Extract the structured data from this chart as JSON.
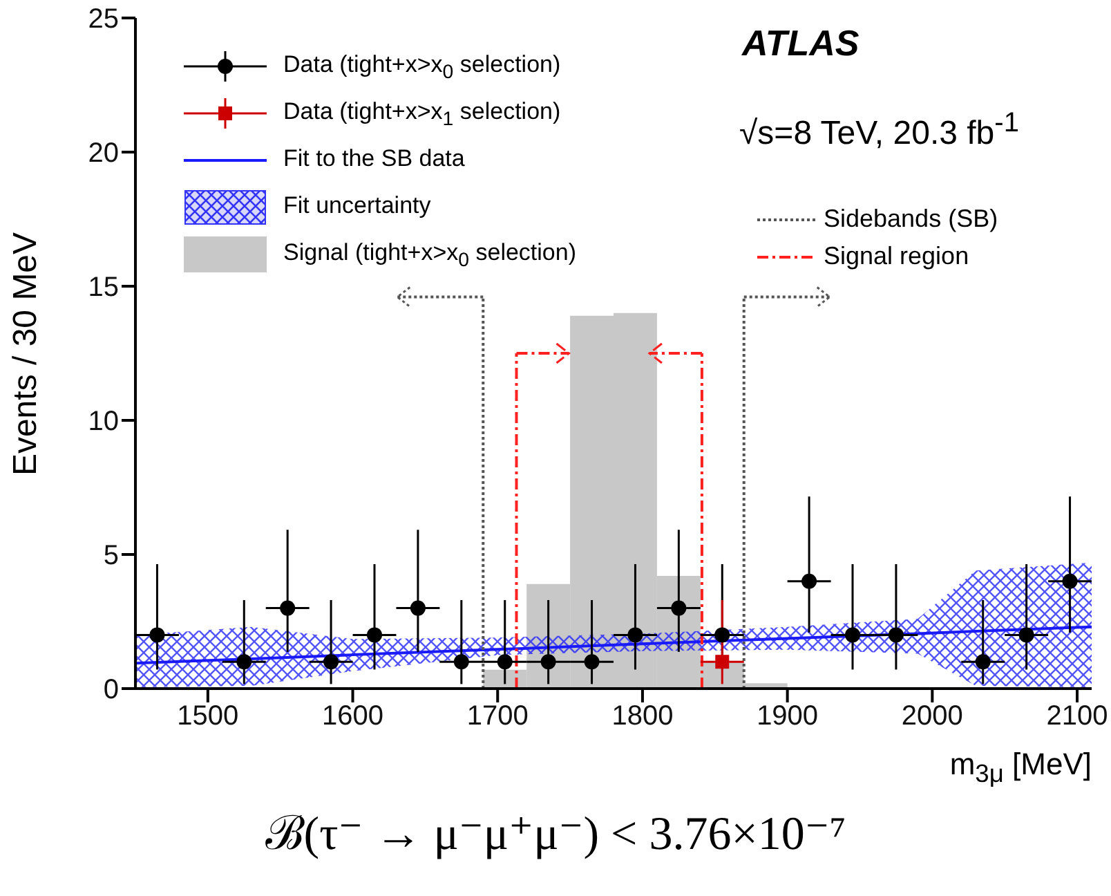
{
  "chart_data": {
    "type": "scatter",
    "xlabel": "m$_{3μ}$ [MeV]",
    "ylabel": "Events / 30 MeV",
    "xlim": [
      1450,
      2110
    ],
    "xticks": [
      1500,
      1600,
      1700,
      1800,
      1900,
      2000,
      2100
    ],
    "ylim": [
      0,
      25
    ],
    "yticks": [
      0,
      5,
      10,
      15,
      20,
      25
    ],
    "legend": "top left",
    "series": [
      {
        "type": "histogram",
        "name": "Signal (tight+x>x$_{0}$ selection)",
        "color": "#c8c8c8",
        "bins": [
          1690,
          1720,
          1750,
          1780,
          1810,
          1840,
          1870,
          1900
        ],
        "values": [
          0.7,
          3.9,
          13.9,
          14.0,
          4.2,
          1.0,
          0.2
        ]
      },
      {
        "type": "line",
        "name": "Fit to the SB data",
        "color": "#1a1aff",
        "x": [
          1450,
          1530,
          1600,
          1700,
          1800,
          1900,
          1990,
          2030,
          2110
        ],
        "values": [
          0.95,
          1.11,
          1.26,
          1.46,
          1.67,
          1.87,
          2.05,
          2.14,
          2.3
        ],
        "lower": [
          0.05,
          0.1,
          0.65,
          1.25,
          1.4,
          1.45,
          1.3,
          0.1,
          0.05
        ],
        "upper": [
          2.0,
          2.3,
          1.85,
          1.9,
          2.05,
          2.3,
          2.6,
          4.4,
          4.7
        ]
      },
      {
        "name": "Data (tight+x>x$_{0}$ selection)",
        "color": "#000000",
        "marker": "circle",
        "x": [
          1465,
          1525,
          1555,
          1585,
          1615,
          1645,
          1675,
          1705,
          1735,
          1765,
          1795,
          1825,
          1855,
          1915,
          1945,
          1975,
          2035,
          2065,
          2095
        ],
        "values": [
          2,
          1,
          3,
          1,
          2,
          3,
          1,
          1,
          1,
          1,
          2,
          3,
          2,
          4,
          2,
          2,
          1,
          2,
          4
        ],
        "errors": [
          [
            0.71,
            4.64
          ],
          [
            0.17,
            3.3
          ],
          [
            1.37,
            5.92
          ],
          [
            0.17,
            3.3
          ],
          [
            0.71,
            4.64
          ],
          [
            1.37,
            5.92
          ],
          [
            0.17,
            3.3
          ],
          [
            0.17,
            3.3
          ],
          [
            0.17,
            3.3
          ],
          [
            0.17,
            3.3
          ],
          [
            0.71,
            4.64
          ],
          [
            1.37,
            5.92
          ],
          [
            0.71,
            4.64
          ],
          [
            2.09,
            7.16
          ],
          [
            0.71,
            4.64
          ],
          [
            0.71,
            4.64
          ],
          [
            0.17,
            3.3
          ],
          [
            0.71,
            4.64
          ],
          [
            2.09,
            7.16
          ]
        ],
        "xerrors": [
          15,
          15,
          15,
          15,
          15,
          15,
          15,
          15,
          15,
          15,
          15,
          15,
          15,
          15,
          15,
          15,
          15,
          15,
          15
        ]
      },
      {
        "name": "Data (tight+x>x$_{1}$ selection)",
        "color": "#cc0000",
        "marker": "square",
        "x": [
          1855
        ],
        "values": [
          1
        ],
        "errors": [
          [
            0.17,
            3.3
          ]
        ],
        "xerrors": [
          15
        ]
      }
    ],
    "ref_lines": [
      {
        "axis": "x",
        "value": 1690,
        "label": "Sidebands (SB)",
        "color": "#555555",
        "line_style": "dotted"
      },
      {
        "axis": "x",
        "value": 1870,
        "color": "#555555",
        "line_style": "dotted"
      },
      {
        "axis": "x",
        "value": 1713,
        "label": "Signal region",
        "color": "#ff2020",
        "line_style": "dashed"
      },
      {
        "axis": "x",
        "value": 1841,
        "color": "#ff2020",
        "line_style": "dashed"
      }
    ],
    "annotations": [
      "ATLAS",
      "√s=8 TeV, 20.3 fb$^{-1}$",
      "ℬ(τ⁻ → μ⁻μ⁺μ⁻) < 3.76×10⁻⁷",
      "Fit uncertainty"
    ]
  }
}
